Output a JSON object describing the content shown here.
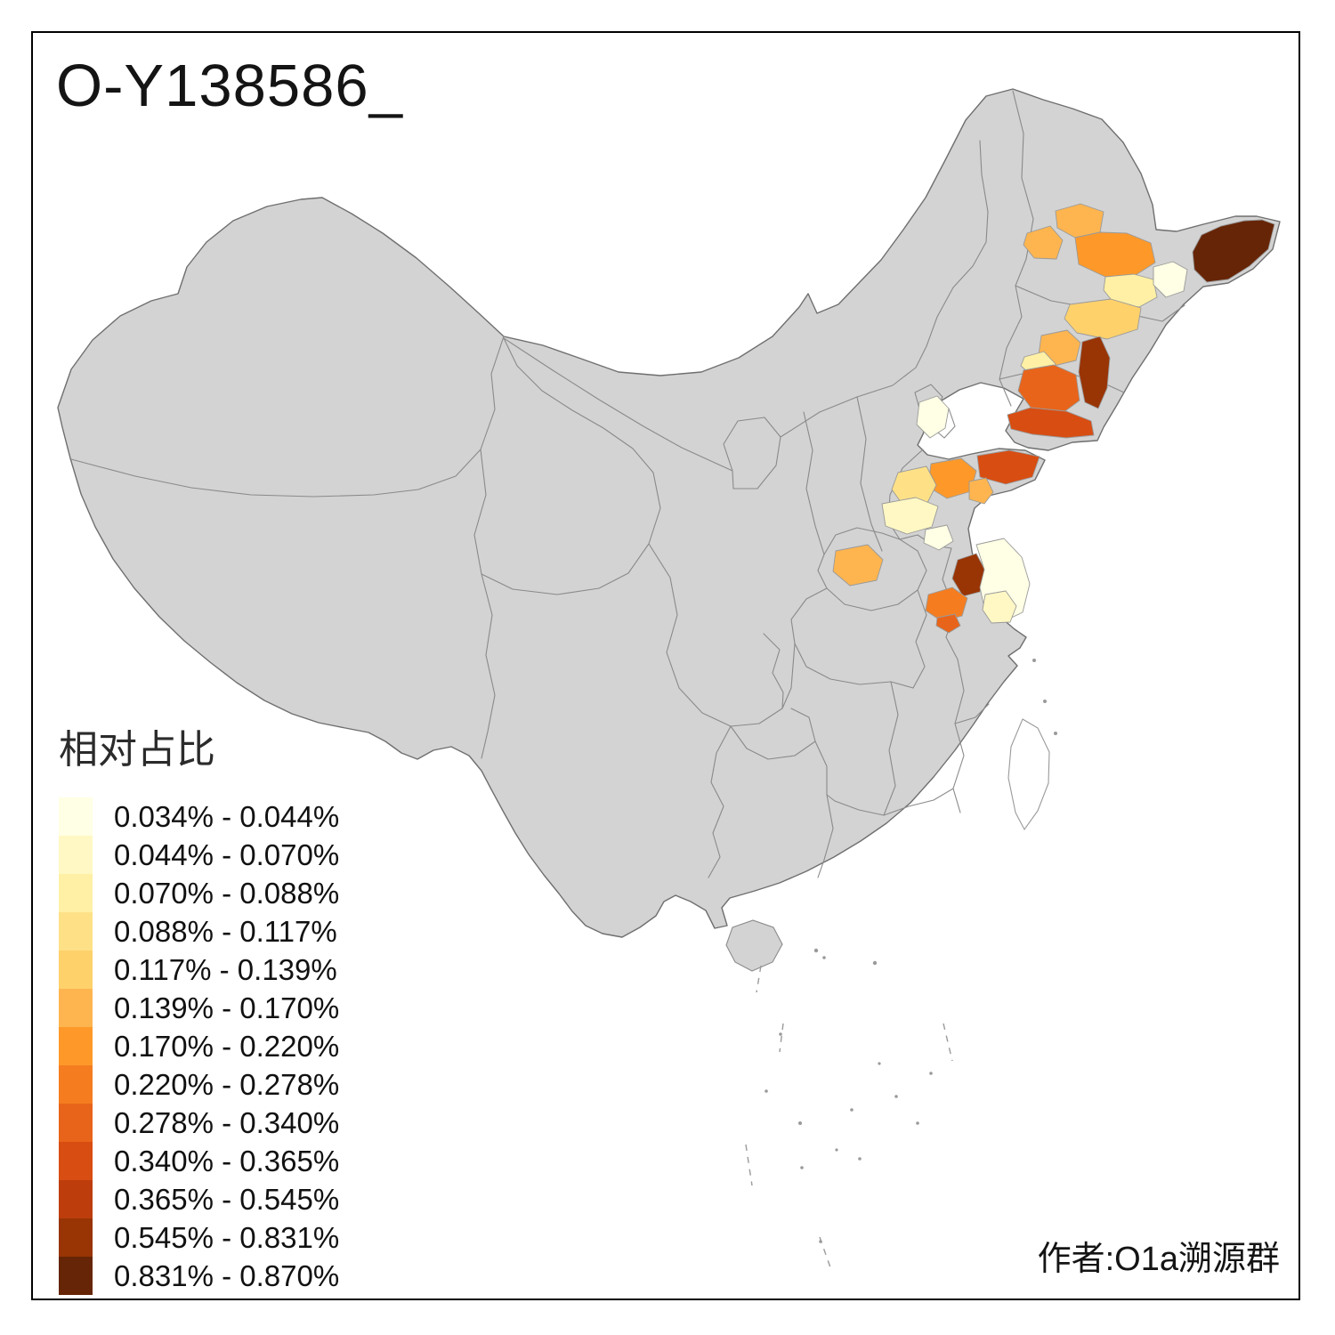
{
  "title": "O-Y138586_",
  "credit": "作者:O1a溯源群",
  "legend": {
    "title": "相对占比",
    "entries": [
      {
        "label": "0.034% - 0.044%",
        "color": "#FFFFE5"
      },
      {
        "label": "0.044% - 0.070%",
        "color": "#FFF8C4"
      },
      {
        "label": "0.070% - 0.088%",
        "color": "#FFF0A5"
      },
      {
        "label": "0.088% - 0.117%",
        "color": "#FEE187"
      },
      {
        "label": "0.117% - 0.139%",
        "color": "#FED16B"
      },
      {
        "label": "0.139% - 0.170%",
        "color": "#FEB54F"
      },
      {
        "label": "0.170% - 0.220%",
        "color": "#FE9929"
      },
      {
        "label": "0.220% - 0.278%",
        "color": "#F57D20"
      },
      {
        "label": "0.278% - 0.340%",
        "color": "#E8641A"
      },
      {
        "label": "0.340% - 0.365%",
        "color": "#D84D12"
      },
      {
        "label": "0.365% - 0.545%",
        "color": "#BD3D0C"
      },
      {
        "label": "0.545% - 0.831%",
        "color": "#993404"
      },
      {
        "label": "0.831% - 0.870%",
        "color": "#662506"
      }
    ]
  },
  "map": {
    "land_color": "#D3D3D3",
    "outline_color": "#6F6F6F",
    "province_border_color": "#8A8A8A",
    "region_border_color": "#9A9A9A",
    "island_dot_color": "#9A9A9A",
    "regions": [
      {
        "id": "heilongjiang-far-east",
        "color": "#662506"
      },
      {
        "id": "ne-orange-1",
        "color": "#FEB54F"
      },
      {
        "id": "ne-orange-2",
        "color": "#FEB54F"
      },
      {
        "id": "ne-orange-3",
        "color": "#FE9929"
      },
      {
        "id": "ne-pale-1",
        "color": "#FFF0A5"
      },
      {
        "id": "ne-pale-2",
        "color": "#FFFFE5"
      },
      {
        "id": "ne-tan",
        "color": "#FED16B"
      },
      {
        "id": "jilin-orange",
        "color": "#FEB54F"
      },
      {
        "id": "jilin-pale",
        "color": "#FFF0A5"
      },
      {
        "id": "liaoning-dark-brown",
        "color": "#993404"
      },
      {
        "id": "liaoning-orange-red",
        "color": "#E8641A"
      },
      {
        "id": "liaodong-coast",
        "color": "#D84D12"
      },
      {
        "id": "hebei-pale",
        "color": "#FFFFE5"
      },
      {
        "id": "shandong-peninsula",
        "color": "#D84D12"
      },
      {
        "id": "shandong-orange",
        "color": "#FE9929"
      },
      {
        "id": "shandong-yellow",
        "color": "#FEE187"
      },
      {
        "id": "shandong-small-orange",
        "color": "#FEB54F"
      },
      {
        "id": "shandong-pale-1",
        "color": "#FFF8C4"
      },
      {
        "id": "shandong-pale-2",
        "color": "#FFFFE5"
      },
      {
        "id": "henan-orange",
        "color": "#FEB54F"
      },
      {
        "id": "jiangsu-dark-brown",
        "color": "#993404"
      },
      {
        "id": "jiangsu-pale-1",
        "color": "#FFFFE5"
      },
      {
        "id": "jiangsu-pale-2",
        "color": "#FFF8C4"
      },
      {
        "id": "anhui-orange-1",
        "color": "#F57D20"
      },
      {
        "id": "anhui-orange-2",
        "color": "#E8641A"
      }
    ]
  }
}
